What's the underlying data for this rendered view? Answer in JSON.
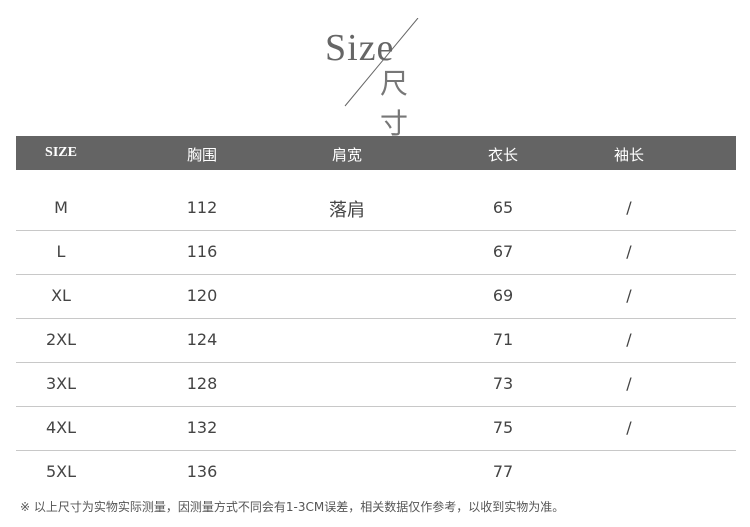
{
  "logo": {
    "en": "Size",
    "zh": "尺寸"
  },
  "table": {
    "headers": [
      "SIZE",
      "胸围",
      "肩宽",
      "衣长",
      "袖长"
    ],
    "rows": [
      [
        "M",
        "112",
        "落肩",
        "65",
        "/"
      ],
      [
        "L",
        "116",
        "",
        "67",
        "/"
      ],
      [
        "XL",
        "120",
        "",
        "69",
        "/"
      ],
      [
        "2XL",
        "124",
        "",
        "71",
        "/"
      ],
      [
        "3XL",
        "128",
        "",
        "73",
        "/"
      ],
      [
        "4XL",
        "132",
        "",
        "75",
        "/"
      ],
      [
        "5XL",
        "136",
        "",
        "77",
        ""
      ]
    ]
  },
  "note": "※ 以上尺寸为实物实际测量，因测量方式不同会有1-3CM误差，相关数据仅作参考，以收到实物为准。",
  "colors": {
    "header_bg": "#646464",
    "header_text": "#ffffff",
    "divider": "#c8c8c8"
  }
}
